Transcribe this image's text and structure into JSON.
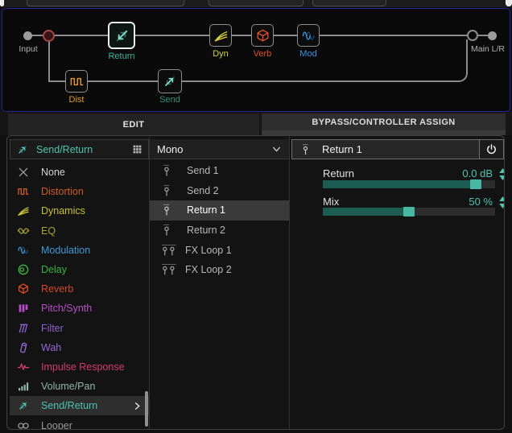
{
  "colors": {
    "accent_teal": "#4fc3ae",
    "accent_teal_bright": "#7ce0cf",
    "accent_teal_dim": "#37907a",
    "selection_white": "#ededed",
    "wire_gray": "#8c8c8c",
    "panel_border_blue": "#26269b"
  },
  "signal_chain": {
    "input_label": "Input",
    "output_label": "Main L/R",
    "path_a": [
      {
        "name": "Return",
        "icon": "return-icon",
        "color": "#3fb39c",
        "selected": true
      },
      {
        "name": "Dyn",
        "icon": "dynamics-icon",
        "color": "#d6d23e",
        "selected": false
      },
      {
        "name": "Verb",
        "icon": "reverb-icon",
        "color": "#e0512a",
        "selected": false
      },
      {
        "name": "Mod",
        "icon": "modulation-icon",
        "color": "#3b93dd",
        "selected": false
      }
    ],
    "path_b": [
      {
        "name": "Dist",
        "icon": "distortion-icon",
        "color": "#e69a2e",
        "selected": false
      },
      {
        "name": "Send",
        "icon": "send-icon",
        "color": "#37907a",
        "selected": false
      }
    ]
  },
  "tabs": [
    {
      "label": "EDIT",
      "active": true
    },
    {
      "label": "BYPASS/CONTROLLER ASSIGN",
      "active": false
    }
  ],
  "sidebar": {
    "header": {
      "label": "Send/Return",
      "color": "#4fc3ae"
    },
    "items": [
      {
        "label": "None",
        "color": "#d6d6d6",
        "selected": false
      },
      {
        "label": "Distortion",
        "color": "#cc5c28",
        "selected": false
      },
      {
        "label": "Dynamics",
        "color": "#c8c234",
        "selected": false
      },
      {
        "label": "EQ",
        "color": "#a9a42c",
        "selected": false
      },
      {
        "label": "Modulation",
        "color": "#3e9ad6",
        "selected": false
      },
      {
        "label": "Delay",
        "color": "#3cb440",
        "selected": false
      },
      {
        "label": "Reverb",
        "color": "#d44828",
        "selected": false
      },
      {
        "label": "Pitch/Synth",
        "color": "#b84ec8",
        "selected": false
      },
      {
        "label": "Filter",
        "color": "#9060d0",
        "selected": false
      },
      {
        "label": "Wah",
        "color": "#9668d4",
        "selected": false
      },
      {
        "label": "Impulse Response",
        "color": "#d43a6e",
        "selected": false
      },
      {
        "label": "Volume/Pan",
        "color": "#92b4aa",
        "selected": false
      },
      {
        "label": "Send/Return",
        "color": "#4fc3ae",
        "selected": true
      },
      {
        "label": "Looper",
        "color": "#9a9a9a",
        "selected": false
      }
    ]
  },
  "model_list": {
    "header": {
      "label": "Mono"
    },
    "items": [
      {
        "label": "Send 1",
        "jacks": 1,
        "selected": false
      },
      {
        "label": "Send 2",
        "jacks": 1,
        "selected": false
      },
      {
        "label": "Return 1",
        "jacks": 1,
        "selected": true
      },
      {
        "label": "Return 2",
        "jacks": 1,
        "selected": false
      },
      {
        "label": "FX Loop 1",
        "jacks": 2,
        "selected": false
      },
      {
        "label": "FX Loop 2",
        "jacks": 2,
        "selected": false
      }
    ]
  },
  "params_panel": {
    "title": "Return 1",
    "power_on": true,
    "params": [
      {
        "label": "Return",
        "value": "0.0 dB",
        "fill_pct": 89
      },
      {
        "label": "Mix",
        "value": "50 %",
        "fill_pct": 50
      }
    ]
  }
}
